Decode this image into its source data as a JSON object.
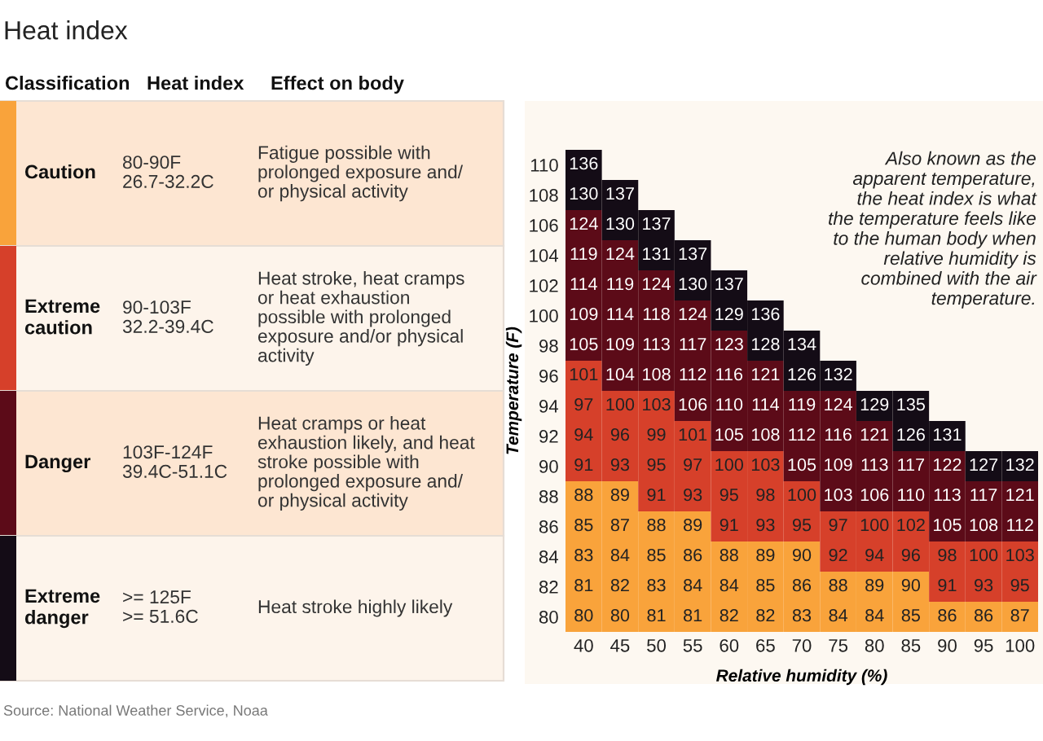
{
  "chart_data": [
    {
      "type": "other",
      "title": "Heat index",
      "categories": [
        "Caution",
        "Extreme caution",
        "Danger",
        "Extreme danger"
      ],
      "colors": [
        "#f9a33b",
        "#d6402a",
        "#5c0b18",
        "#140c16"
      ],
      "annotations": [
        "Classification",
        "Heat index",
        "Effect on body",
        "80-90F\n26.7-32.2C",
        "Fatigue possible with\nprolonged exposure and/\nor physical activity",
        "90-103F\n32.2-39.4C",
        "Heat stroke, heat cramps\nor heat exhaustion\npossible with prolonged\nexposure and/or physical\nactivity",
        "103F-124F\n39.4C-51.1C",
        "Heat cramps or heat\nexhaustion likely, and heat\nstroke possible with\nprolonged exposure and/\nor physical activity",
        ">= 125F\n>= 51.6C",
        "Heat stroke highly likely",
        "Source: National Weather Service, Noaa"
      ]
    },
    {
      "type": "heatmap",
      "data_labels": true,
      "xlabel": "Relative humidity (%)",
      "ylabel": "Temperature (F)",
      "categories": [
        "40",
        "45",
        "50",
        "55",
        "60",
        "65",
        "70",
        "75",
        "80",
        "85",
        "90",
        "95",
        "100"
      ],
      "y_categories": [
        "110",
        "108",
        "106",
        "104",
        "102",
        "100",
        "98",
        "96",
        "94",
        "92",
        "90",
        "88",
        "86",
        "84",
        "82",
        "80"
      ],
      "cells": [
        [
          136,
          null,
          null,
          null,
          null,
          null,
          null,
          null,
          null,
          null,
          null,
          null,
          null
        ],
        [
          130,
          137,
          null,
          null,
          null,
          null,
          null,
          null,
          null,
          null,
          null,
          null,
          null
        ],
        [
          124,
          130,
          137,
          null,
          null,
          null,
          null,
          null,
          null,
          null,
          null,
          null,
          null
        ],
        [
          119,
          124,
          131,
          137,
          null,
          null,
          null,
          null,
          null,
          null,
          null,
          null,
          null
        ],
        [
          114,
          119,
          124,
          130,
          137,
          null,
          null,
          null,
          null,
          null,
          null,
          null,
          null
        ],
        [
          109,
          114,
          118,
          124,
          129,
          136,
          null,
          null,
          null,
          null,
          null,
          null,
          null
        ],
        [
          105,
          109,
          113,
          117,
          123,
          128,
          134,
          null,
          null,
          null,
          null,
          null,
          null
        ],
        [
          101,
          104,
          108,
          112,
          116,
          121,
          126,
          132,
          null,
          null,
          null,
          null,
          null
        ],
        [
          97,
          100,
          103,
          106,
          110,
          114,
          119,
          124,
          129,
          135,
          null,
          null,
          null
        ],
        [
          94,
          96,
          99,
          101,
          105,
          108,
          112,
          116,
          121,
          126,
          131,
          null,
          null
        ],
        [
          91,
          93,
          95,
          97,
          100,
          103,
          105,
          109,
          113,
          117,
          122,
          127,
          132
        ],
        [
          88,
          89,
          91,
          93,
          95,
          98,
          100,
          103,
          106,
          110,
          113,
          117,
          121
        ],
        [
          85,
          87,
          88,
          89,
          91,
          93,
          95,
          97,
          100,
          102,
          105,
          108,
          112
        ],
        [
          83,
          84,
          85,
          86,
          88,
          89,
          90,
          92,
          94,
          96,
          98,
          100,
          103
        ],
        [
          81,
          82,
          83,
          84,
          84,
          85,
          86,
          88,
          89,
          90,
          91,
          93,
          95
        ],
        [
          80,
          80,
          81,
          81,
          82,
          82,
          83,
          84,
          84,
          85,
          86,
          86,
          87
        ]
      ],
      "colors": [
        [
          "#140c16",
          null,
          null,
          null,
          null,
          null,
          null,
          null,
          null,
          null,
          null,
          null,
          null
        ],
        [
          "#140c16",
          "#140c16",
          null,
          null,
          null,
          null,
          null,
          null,
          null,
          null,
          null,
          null,
          null
        ],
        [
          "#5c0b18",
          "#140c16",
          "#140c16",
          null,
          null,
          null,
          null,
          null,
          null,
          null,
          null,
          null,
          null
        ],
        [
          "#5c0b18",
          "#5c0b18",
          "#140c16",
          "#140c16",
          null,
          null,
          null,
          null,
          null,
          null,
          null,
          null,
          null
        ],
        [
          "#5c0b18",
          "#5c0b18",
          "#5c0b18",
          "#140c16",
          "#140c16",
          null,
          null,
          null,
          null,
          null,
          null,
          null,
          null
        ],
        [
          "#5c0b18",
          "#5c0b18",
          "#5c0b18",
          "#5c0b18",
          "#140c16",
          "#140c16",
          null,
          null,
          null,
          null,
          null,
          null,
          null
        ],
        [
          "#5c0b18",
          "#5c0b18",
          "#5c0b18",
          "#5c0b18",
          "#5c0b18",
          "#140c16",
          "#140c16",
          null,
          null,
          null,
          null,
          null,
          null
        ],
        [
          "#d6402a",
          "#5c0b18",
          "#5c0b18",
          "#5c0b18",
          "#5c0b18",
          "#5c0b18",
          "#140c16",
          "#140c16",
          null,
          null,
          null,
          null,
          null
        ],
        [
          "#d6402a",
          "#d6402a",
          "#d6402a",
          "#5c0b18",
          "#5c0b18",
          "#5c0b18",
          "#5c0b18",
          "#5c0b18",
          "#140c16",
          "#140c16",
          null,
          null,
          null
        ],
        [
          "#d6402a",
          "#d6402a",
          "#d6402a",
          "#d6402a",
          "#5c0b18",
          "#5c0b18",
          "#5c0b18",
          "#5c0b18",
          "#5c0b18",
          "#140c16",
          "#140c16",
          null,
          null
        ],
        [
          "#d6402a",
          "#d6402a",
          "#d6402a",
          "#d6402a",
          "#d6402a",
          "#d6402a",
          "#5c0b18",
          "#5c0b18",
          "#5c0b18",
          "#5c0b18",
          "#5c0b18",
          "#140c16",
          "#140c16"
        ],
        [
          "#f9a33b",
          "#f9a33b",
          "#d6402a",
          "#d6402a",
          "#d6402a",
          "#d6402a",
          "#d6402a",
          "#5c0b18",
          "#5c0b18",
          "#5c0b18",
          "#5c0b18",
          "#5c0b18",
          "#5c0b18"
        ],
        [
          "#f9a33b",
          "#f9a33b",
          "#f9a33b",
          "#f9a33b",
          "#d6402a",
          "#d6402a",
          "#d6402a",
          "#d6402a",
          "#d6402a",
          "#d6402a",
          "#5c0b18",
          "#5c0b18",
          "#5c0b18"
        ],
        [
          "#f9a33b",
          "#f9a33b",
          "#f9a33b",
          "#f9a33b",
          "#f9a33b",
          "#f9a33b",
          "#f9a33b",
          "#d6402a",
          "#d6402a",
          "#d6402a",
          "#d6402a",
          "#d6402a",
          "#d6402a"
        ],
        [
          "#f9a33b",
          "#f9a33b",
          "#f9a33b",
          "#f9a33b",
          "#f9a33b",
          "#f9a33b",
          "#f9a33b",
          "#f9a33b",
          "#f9a33b",
          "#f9a33b",
          "#d6402a",
          "#d6402a",
          "#d6402a"
        ],
        [
          "#f9a33b",
          "#f9a33b",
          "#f9a33b",
          "#f9a33b",
          "#f9a33b",
          "#f9a33b",
          "#f9a33b",
          "#f9a33b",
          "#f9a33b",
          "#f9a33b",
          "#f9a33b",
          "#f9a33b",
          "#f9a33b"
        ]
      ],
      "annotations": [
        "Also known as the\napparent temperature,\nthe heat index is what\nthe temperature feels like\nto the human body when\nrelative humidity is\ncombined with the air\ntemperature."
      ]
    }
  ]
}
